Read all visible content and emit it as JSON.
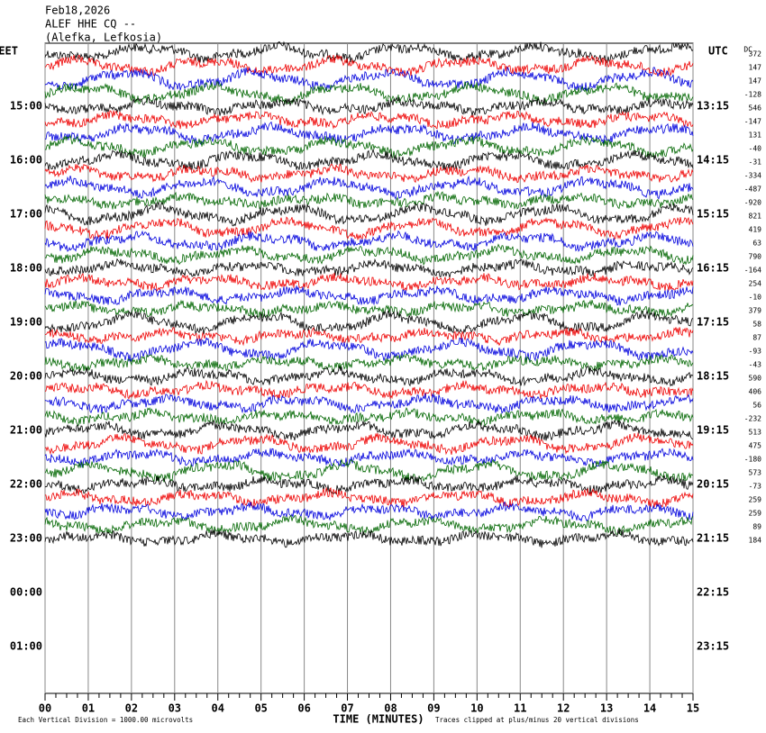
{
  "header": {
    "date": "Feb18,2026",
    "station": "ALEF HHE CQ --",
    "location": "(Alefka, Lefkosia)"
  },
  "left_axis": {
    "label": "EET",
    "times": [
      "15:00",
      "16:00",
      "17:00",
      "18:00",
      "19:00",
      "20:00",
      "21:00",
      "22:00",
      "23:00",
      "00:00",
      "01:00"
    ]
  },
  "right_axis": {
    "label": "UTC",
    "times": [
      "13:15",
      "14:15",
      "15:15",
      "16:15",
      "17:15",
      "18:15",
      "19:15",
      "20:15",
      "21:15",
      "22:15",
      "23:15"
    ]
  },
  "dc": {
    "label": "DC",
    "offsets": [
      372,
      147,
      147,
      -128,
      546,
      -147,
      131,
      -40,
      -31,
      -334,
      -487,
      -920,
      821,
      419,
      63,
      790,
      -164,
      254,
      -10,
      379,
      58,
      87,
      -93,
      -43,
      590,
      406,
      56,
      -232,
      513,
      475,
      -180,
      573,
      -73,
      259,
      259,
      89,
      184
    ]
  },
  "x_axis": {
    "ticks": [
      "00",
      "01",
      "02",
      "03",
      "04",
      "05",
      "06",
      "07",
      "08",
      "09",
      "10",
      "11",
      "12",
      "13",
      "14",
      "15"
    ],
    "label": "TIME (MINUTES)"
  },
  "footer": {
    "scale": "Each Vertical Division = 1000.00 microvolts",
    "clip": "Traces clipped at plus/minus 20 vertical divisions"
  }
}
